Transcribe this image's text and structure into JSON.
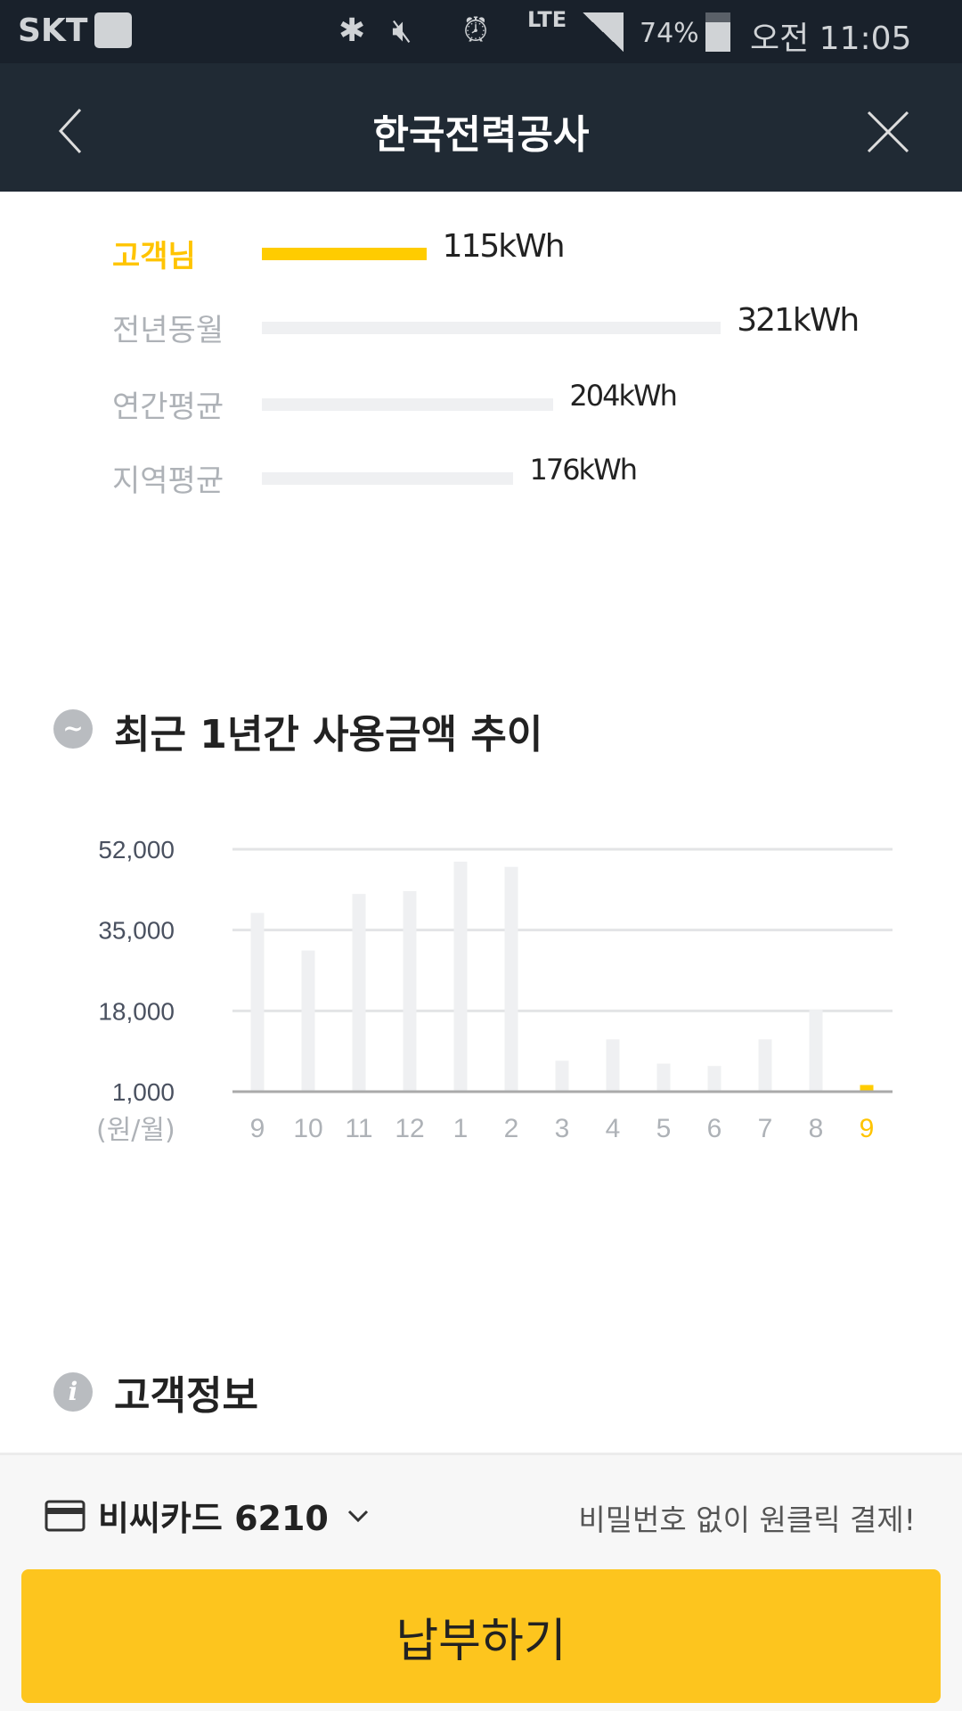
{
  "status_bar": {
    "carrier": "SKT",
    "battery": "74%",
    "time": "오전 11:05",
    "network": "LTE",
    "icons": [
      "briefcase-check-icon",
      "bluetooth-icon",
      "mute-icon",
      "alarm-icon",
      "signal-icon",
      "battery-icon"
    ]
  },
  "header": {
    "title": "한국전력공사",
    "back_icon": "chevron-left-icon",
    "close_icon": "close-icon"
  },
  "comparison": {
    "unit": "kWh",
    "rows": [
      {
        "label": "고객님",
        "value": 115,
        "text": "115kWh",
        "highlight": true
      },
      {
        "label": "전년동월",
        "value": 321,
        "text": "321kWh",
        "highlight": false
      },
      {
        "label": "연간평균",
        "value": 204,
        "text": "204kWh",
        "highlight": false
      },
      {
        "label": "지역평균",
        "value": 176,
        "text": "176kWh",
        "highlight": false
      }
    ]
  },
  "trend_section": {
    "title": "최근 1년간 사용금액 추이",
    "icon": "trend-icon"
  },
  "chart_data": {
    "type": "bar",
    "categories": [
      "9",
      "10",
      "11",
      "12",
      "1",
      "2",
      "3",
      "4",
      "5",
      "6",
      "7",
      "8",
      "9"
    ],
    "values": [
      38600,
      30700,
      42600,
      43200,
      49400,
      48300,
      7500,
      12000,
      6900,
      6400,
      12000,
      18300,
      2400
    ],
    "highlight_index": 12,
    "yticks": [
      "52,000",
      "35,000",
      "18,000",
      "1,000"
    ],
    "ytick_values": [
      52000,
      35000,
      18000,
      1000
    ],
    "ylim": [
      1000,
      52000
    ],
    "unit_label": "(원/월)",
    "grid": true,
    "colors": {
      "bar": "#eff0f2",
      "highlight": "#ffcc00",
      "grid": "#e3e4e6",
      "axis": "#aaaaaa"
    }
  },
  "info_section": {
    "title": "고객정보",
    "icon": "info-icon"
  },
  "payment": {
    "card": "비씨카드 6210",
    "promo": "비밀번호 없이 원클릭 결제!",
    "button": "납부하기"
  },
  "colors": {
    "accent": "#ffcc00",
    "button": "#fdc51e",
    "header": "#202a34"
  }
}
